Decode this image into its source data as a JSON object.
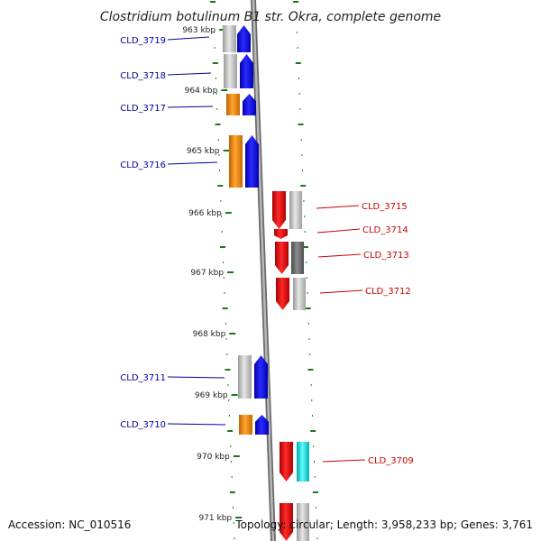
{
  "title": "Clostridium botulinum B1 str. Okra, complete genome",
  "accession": "Accession: NC_010516",
  "topology": "Topology: circular; Length: 3,958,233 bp; Genes: 3,761",
  "colors": {
    "backbone": "#8a8a8a",
    "tick": "#1a7a1a",
    "left_label": "#00009a",
    "right_label": "#cc0000",
    "orange": "#ff8c00",
    "blue": "#0000ee",
    "red": "#ee0000",
    "cyan": "#00e5e5",
    "gray": "#bdbdbd",
    "dark_gray": "#6f6f6f"
  },
  "kbp_labels": [
    "963 kbp",
    "964 kbp",
    "965 kbp",
    "966 kbp",
    "967 kbp",
    "968 kbp",
    "969 kbp",
    "970 kbp",
    "971 kbp"
  ],
  "left_genes": [
    "CLD_3719",
    "CLD_3718",
    "CLD_3717",
    "CLD_3716",
    "CLD_3711",
    "CLD_3710"
  ],
  "right_genes": [
    "CLD_3715",
    "CLD_3714",
    "CLD_3713",
    "CLD_3712",
    "CLD_3709"
  ]
}
